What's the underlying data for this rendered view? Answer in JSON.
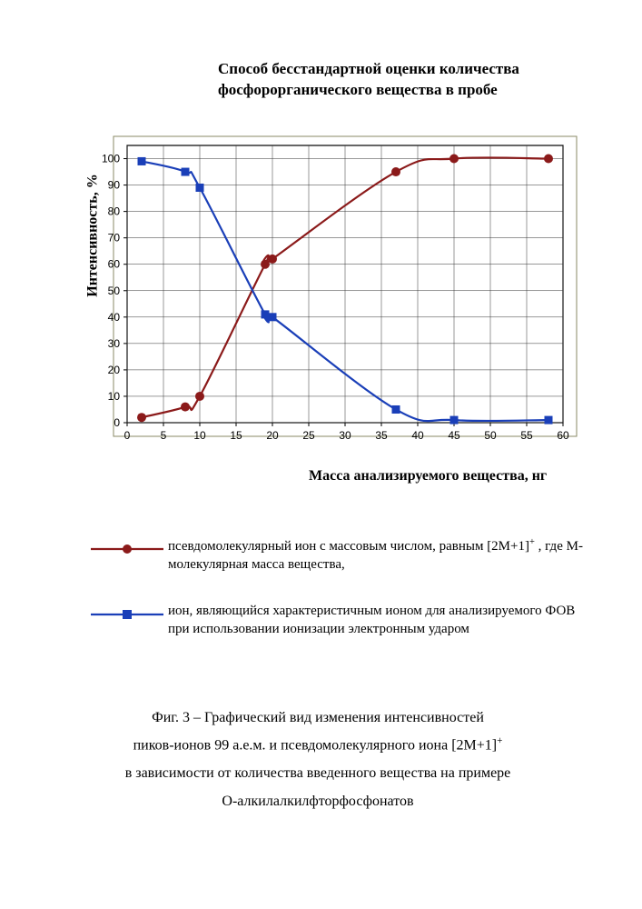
{
  "title_line1": "Способ бесстандартной оценки количества",
  "title_line2": "фосфорорганического вещества в пробе",
  "chart": {
    "type": "line",
    "xlim": [
      0,
      60
    ],
    "ylim": [
      0,
      105
    ],
    "xticks": [
      0,
      5,
      10,
      15,
      20,
      25,
      30,
      35,
      40,
      45,
      50,
      55,
      60
    ],
    "yticks": [
      0,
      10,
      20,
      30,
      40,
      50,
      60,
      70,
      80,
      90,
      100
    ],
    "grid_color": "#333333",
    "background_color": "#ffffff",
    "frame_color": "#8a8a66",
    "axis_color": "#000000",
    "tick_fontsize": 12,
    "ylabel": "Интенсивность, %",
    "xlabel": "Масса анализируемого вещества, нг",
    "series": [
      {
        "name": "pseudo_molecular_ion",
        "color": "#8b1a1a",
        "marker": "circle",
        "marker_size": 5,
        "line_width": 2.2,
        "x": [
          2,
          8,
          10,
          19,
          20,
          37,
          45,
          58
        ],
        "y": [
          2,
          6,
          10,
          60,
          62,
          95,
          100,
          100
        ]
      },
      {
        "name": "characteristic_ion",
        "color": "#1a3fb8",
        "marker": "square",
        "marker_size": 5,
        "line_width": 2.2,
        "x": [
          2,
          8,
          10,
          19,
          20,
          37,
          45,
          58
        ],
        "y": [
          99,
          95,
          89,
          41,
          40,
          5,
          1,
          1
        ]
      }
    ]
  },
  "legend": {
    "items": [
      {
        "marker_color": "#8b1a1a",
        "marker_type": "circle",
        "text_html": "псевдомолекулярный ион с массовым числом, равным [2M+1]<sup>+</sup> , где М-молекулярная масса вещества,"
      },
      {
        "marker_color": "#1a3fb8",
        "marker_type": "square",
        "text_html": "ион, являющийся характеристичным ионом для анализируемого ФОВ при использовании ионизации электронным ударом"
      }
    ]
  },
  "caption": {
    "line1": "Фиг. 3 – Графический вид изменения интенсивностей",
    "line2_html": "пиков-ионов 99 а.е.м. и псевдомолекулярного иона [2M+1]<sup>+</sup>",
    "line3": "в зависимости от количества введенного вещества на примере",
    "line4": "О-алкилалкилфторфосфонатов"
  }
}
